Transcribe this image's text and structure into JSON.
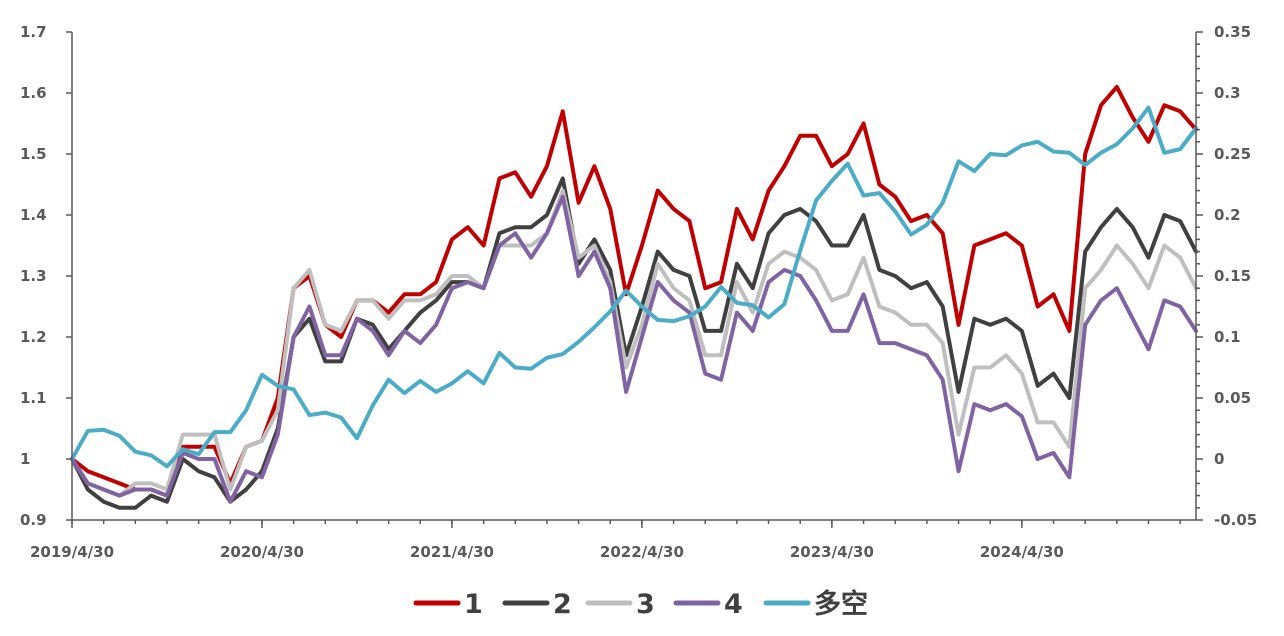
{
  "chart_data": {
    "type": "line",
    "title": "",
    "xlabel": "",
    "ylabel": "",
    "x_tick_labels": [
      "2019/4/30",
      "2020/4/30",
      "2021/4/30",
      "2022/4/30",
      "2023/4/30",
      "2024/4/30"
    ],
    "x_tick_month_index": [
      0,
      12,
      24,
      36,
      48,
      60
    ],
    "n_points": 72,
    "y_left": {
      "ylim": [
        0.9,
        1.7
      ],
      "ticks": [
        "0.9",
        "1",
        "1.1",
        "1.2",
        "1.3",
        "1.4",
        "1.5",
        "1.6",
        "1.7"
      ]
    },
    "y_right": {
      "ylim": [
        -0.05,
        0.35
      ],
      "ticks": [
        "-0.05",
        "0",
        "0.05",
        "0.1",
        "0.15",
        "0.2",
        "0.25",
        "0.3",
        "0.35"
      ]
    },
    "grid": false,
    "legend_position": "bottom-center",
    "series": [
      {
        "name": "1",
        "axis": "left",
        "color": "#C00000",
        "values": [
          1.0,
          0.98,
          0.97,
          0.96,
          0.95,
          0.95,
          0.94,
          1.02,
          1.02,
          1.02,
          0.96,
          1.02,
          1.03,
          1.1,
          1.28,
          1.3,
          1.22,
          1.2,
          1.26,
          1.26,
          1.24,
          1.27,
          1.27,
          1.29,
          1.36,
          1.38,
          1.35,
          1.46,
          1.47,
          1.43,
          1.48,
          1.57,
          1.42,
          1.48,
          1.41,
          1.27,
          1.35,
          1.44,
          1.41,
          1.39,
          1.28,
          1.29,
          1.41,
          1.36,
          1.44,
          1.48,
          1.53,
          1.53,
          1.48,
          1.5,
          1.55,
          1.45,
          1.43,
          1.39,
          1.4,
          1.37,
          1.22,
          1.35,
          1.36,
          1.37,
          1.35,
          1.25,
          1.27,
          1.21,
          1.5,
          1.58,
          1.61,
          1.56,
          1.52,
          1.58,
          1.57,
          1.54
        ]
      },
      {
        "name": "2",
        "axis": "left",
        "color": "#404040",
        "values": [
          1.0,
          0.95,
          0.93,
          0.92,
          0.92,
          0.94,
          0.93,
          1.0,
          0.98,
          0.97,
          0.93,
          0.95,
          0.98,
          1.05,
          1.2,
          1.23,
          1.16,
          1.16,
          1.23,
          1.22,
          1.18,
          1.21,
          1.24,
          1.26,
          1.29,
          1.29,
          1.28,
          1.37,
          1.38,
          1.38,
          1.4,
          1.46,
          1.32,
          1.36,
          1.31,
          1.17,
          1.25,
          1.34,
          1.31,
          1.3,
          1.21,
          1.21,
          1.32,
          1.28,
          1.37,
          1.4,
          1.41,
          1.39,
          1.35,
          1.35,
          1.4,
          1.31,
          1.3,
          1.28,
          1.29,
          1.25,
          1.11,
          1.23,
          1.22,
          1.23,
          1.21,
          1.12,
          1.14,
          1.1,
          1.34,
          1.38,
          1.41,
          1.38,
          1.33,
          1.4,
          1.39,
          1.34
        ]
      },
      {
        "name": "3",
        "axis": "left",
        "color": "#BFBFBF",
        "values": [
          1.0,
          0.96,
          0.95,
          0.94,
          0.96,
          0.96,
          0.95,
          1.04,
          1.04,
          1.04,
          0.95,
          1.02,
          1.03,
          1.08,
          1.28,
          1.31,
          1.22,
          1.21,
          1.26,
          1.26,
          1.23,
          1.26,
          1.26,
          1.27,
          1.3,
          1.3,
          1.28,
          1.35,
          1.35,
          1.35,
          1.37,
          1.44,
          1.33,
          1.35,
          1.29,
          1.15,
          1.22,
          1.32,
          1.28,
          1.26,
          1.17,
          1.17,
          1.29,
          1.24,
          1.32,
          1.34,
          1.33,
          1.31,
          1.26,
          1.27,
          1.33,
          1.25,
          1.24,
          1.22,
          1.22,
          1.19,
          1.04,
          1.15,
          1.15,
          1.17,
          1.14,
          1.06,
          1.06,
          1.02,
          1.28,
          1.31,
          1.35,
          1.32,
          1.28,
          1.35,
          1.33,
          1.28
        ]
      },
      {
        "name": "4",
        "axis": "left",
        "color": "#8064A2",
        "values": [
          1.0,
          0.96,
          0.95,
          0.94,
          0.95,
          0.95,
          0.94,
          1.01,
          1.0,
          1.0,
          0.93,
          0.98,
          0.97,
          1.04,
          1.2,
          1.25,
          1.17,
          1.17,
          1.23,
          1.21,
          1.17,
          1.21,
          1.19,
          1.22,
          1.28,
          1.29,
          1.28,
          1.35,
          1.37,
          1.33,
          1.37,
          1.43,
          1.3,
          1.34,
          1.28,
          1.11,
          1.2,
          1.29,
          1.26,
          1.24,
          1.14,
          1.13,
          1.24,
          1.21,
          1.29,
          1.31,
          1.3,
          1.26,
          1.21,
          1.21,
          1.27,
          1.19,
          1.19,
          1.18,
          1.17,
          1.13,
          0.98,
          1.09,
          1.08,
          1.09,
          1.07,
          1.0,
          1.01,
          0.97,
          1.22,
          1.26,
          1.28,
          1.23,
          1.18,
          1.26,
          1.25,
          1.21
        ]
      },
      {
        "name": "多空",
        "axis": "right",
        "color": "#4BACC6",
        "values": [
          0.0,
          0.023,
          0.024,
          0.019,
          0.006,
          0.003,
          -0.006,
          0.008,
          0.004,
          0.022,
          0.022,
          0.04,
          0.069,
          0.06,
          0.057,
          0.036,
          0.038,
          0.034,
          0.017,
          0.044,
          0.065,
          0.054,
          0.064,
          0.055,
          0.062,
          0.072,
          0.062,
          0.087,
          0.075,
          0.074,
          0.083,
          0.086,
          0.096,
          0.108,
          0.121,
          0.138,
          0.125,
          0.114,
          0.113,
          0.117,
          0.125,
          0.141,
          0.128,
          0.126,
          0.116,
          0.127,
          0.171,
          0.212,
          0.228,
          0.242,
          0.216,
          0.218,
          0.203,
          0.184,
          0.192,
          0.21,
          0.244,
          0.236,
          0.25,
          0.249,
          0.257,
          0.26,
          0.252,
          0.251,
          0.241,
          0.251,
          0.258,
          0.271,
          0.288,
          0.251,
          0.254,
          0.271
        ]
      }
    ]
  }
}
